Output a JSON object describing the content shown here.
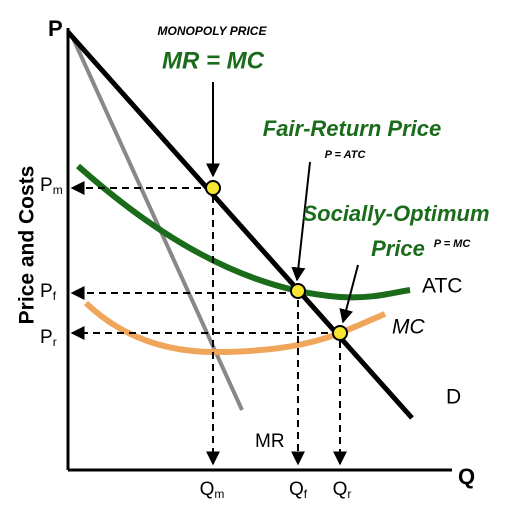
{
  "axes": {
    "y_letter": "P",
    "x_letter": "Q",
    "y_title": "Price and Costs"
  },
  "annotations": {
    "monopoly_caption": "MONOPOLY PRICE",
    "monopoly_rule": "MR = MC",
    "fair_return": "Fair-Return Price",
    "fair_rule": "P = ATC",
    "social_line1": "Socially-Optimum",
    "social_line2": "Price",
    "social_rule": "P = MC"
  },
  "curves": {
    "atc": "ATC",
    "mc": "MC",
    "demand": "D",
    "mr": "MR"
  },
  "price_labels": [
    {
      "letter": "P",
      "sub": "m"
    },
    {
      "letter": "P",
      "sub": "f"
    },
    {
      "letter": "P",
      "sub": "r"
    }
  ],
  "quantity_labels": [
    {
      "letter": "Q",
      "sub": "m"
    },
    {
      "letter": "Q",
      "sub": "f"
    },
    {
      "letter": "Q",
      "sub": "r"
    }
  ]
}
